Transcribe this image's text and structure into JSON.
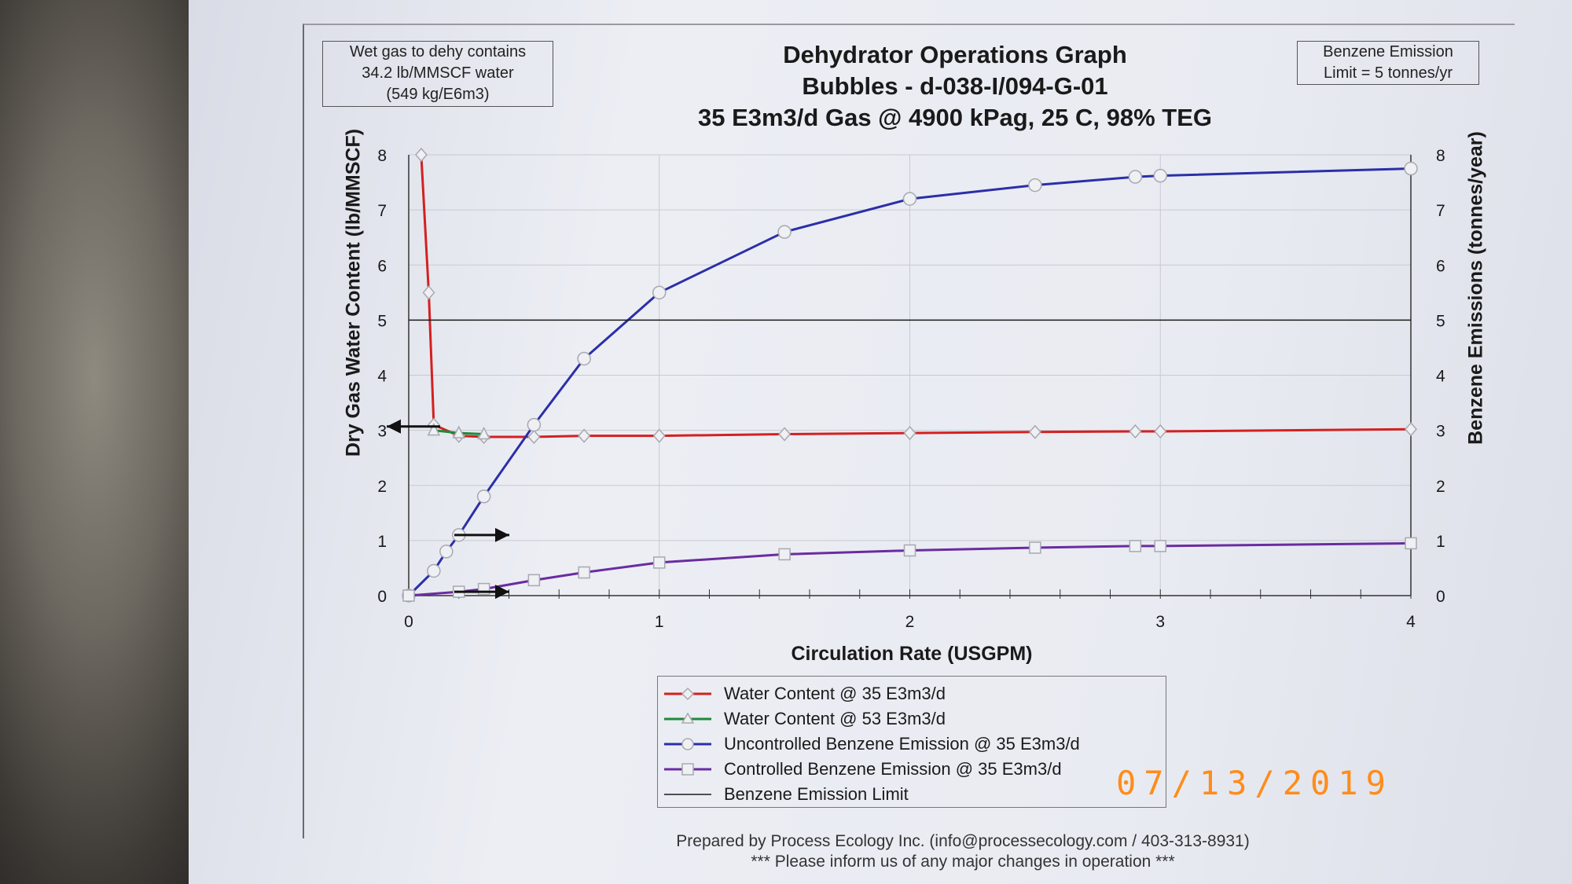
{
  "note_box": {
    "lines": [
      "Wet gas to dehy contains",
      "34.2 lb/MMSCF water",
      "(549 kg/E6m3)"
    ]
  },
  "limit_box": {
    "lines": [
      "Benzene Emission",
      "Limit = 5 tonnes/yr"
    ]
  },
  "footer": {
    "line1": "Prepared by Process Ecology Inc. (info@processecology.com / 403-313-8931)",
    "line2": "*** Please inform us of any major changes in operation ***"
  },
  "date_stamp": "07/13/2019",
  "chart_data": {
    "type": "line",
    "title": [
      "Dehydrator Operations Graph",
      "Bubbles - d-038-I/094-G-01",
      "35 E3m3/d Gas @ 4900 kPag, 25 C, 98% TEG"
    ],
    "xlabel": "Circulation Rate (USGPM)",
    "ylabel": "Dry Gas Water Content (lb/MMSCF)",
    "y2label": "Benzene Emissions (tonnes/year)",
    "xlim": [
      0,
      4
    ],
    "ylim": [
      0,
      8
    ],
    "y2lim": [
      0,
      8
    ],
    "x_ticks": [
      "0",
      "1",
      "2",
      "3",
      "4"
    ],
    "y_ticks": [
      "0",
      "1",
      "2",
      "3",
      "4",
      "5",
      "6",
      "7",
      "8"
    ],
    "y2_ticks": [
      "0",
      "1",
      "2",
      "3",
      "4",
      "5",
      "6",
      "7",
      "8"
    ],
    "grid": true,
    "legend_position": "bottom-center",
    "series": [
      {
        "name": "Water Content @ 35 E3m3/d",
        "color": "#d42020",
        "marker": "diamond",
        "axis": "left",
        "x": [
          0.05,
          0.08,
          0.1,
          0.2,
          0.3,
          0.5,
          0.7,
          1.0,
          1.5,
          2.0,
          2.5,
          2.9,
          3.0,
          4.0
        ],
        "y": [
          8.0,
          5.5,
          3.1,
          2.9,
          2.88,
          2.88,
          2.9,
          2.9,
          2.93,
          2.95,
          2.97,
          2.98,
          2.98,
          3.02
        ]
      },
      {
        "name": "Water Content @ 53 E3m3/d",
        "color": "#1d8a3a",
        "marker": "triangle",
        "axis": "left",
        "x": [
          0.1,
          0.2,
          0.3
        ],
        "y": [
          3.0,
          2.95,
          2.93
        ]
      },
      {
        "name": "Uncontrolled Benzene Emission @ 35 E3m3/d",
        "color": "#2b2fa8",
        "marker": "circle",
        "axis": "right",
        "x": [
          0.0,
          0.1,
          0.15,
          0.2,
          0.3,
          0.5,
          0.7,
          1.0,
          1.5,
          2.0,
          2.5,
          2.9,
          3.0,
          4.0
        ],
        "y": [
          0.0,
          0.45,
          0.8,
          1.1,
          1.8,
          3.1,
          4.3,
          5.5,
          6.6,
          7.2,
          7.45,
          7.6,
          7.62,
          7.75
        ]
      },
      {
        "name": "Controlled Benzene Emission @ 35 E3m3/d",
        "color": "#6a2ca0",
        "marker": "square",
        "axis": "right",
        "x": [
          0.0,
          0.2,
          0.3,
          0.5,
          0.7,
          1.0,
          1.5,
          2.0,
          2.5,
          2.9,
          3.0,
          4.0
        ],
        "y": [
          0.0,
          0.07,
          0.12,
          0.28,
          0.42,
          0.6,
          0.75,
          0.82,
          0.87,
          0.9,
          0.9,
          0.95
        ]
      },
      {
        "name": "Benzene Emission Limit",
        "color": "#1a1a1a",
        "marker": "none",
        "axis": "right",
        "x": [
          0,
          4
        ],
        "y": [
          5,
          5
        ]
      }
    ]
  }
}
